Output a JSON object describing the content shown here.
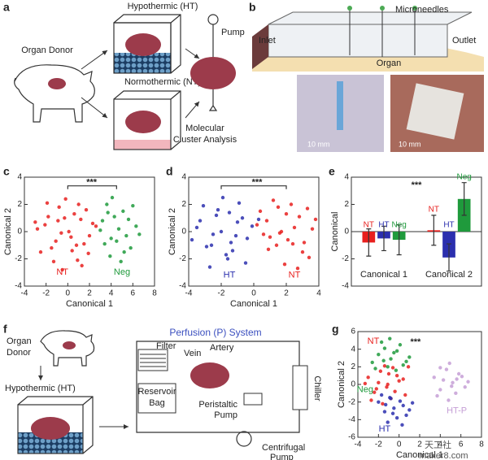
{
  "figure": {
    "panel_labels": [
      "a",
      "b",
      "c",
      "d",
      "e",
      "f",
      "g"
    ]
  },
  "panel_a": {
    "donor": "Organ Donor",
    "ht": "Hypothermic (HT)",
    "nt": "Normothermic (NT)",
    "pump": "Pump",
    "analysis": [
      "Molecular",
      "Cluster Analysis"
    ]
  },
  "panel_b": {
    "microneedles": "Microneedles",
    "inlet": "Inlet",
    "outlet": "Outlet",
    "organ": "Organ",
    "scale_bars": [
      "10 mm",
      "10 mm"
    ]
  },
  "panel_f": {
    "donor": [
      "Organ",
      "Donor"
    ],
    "ht": "Hypothermic (HT)",
    "system": "Perfusion (P) System",
    "filter": "Filter",
    "vein": "Vein",
    "artery": "Artery",
    "reservoir": [
      "Reservoir",
      "Bag"
    ],
    "peristaltic": [
      "Peristaltic",
      "Pump"
    ],
    "chiller": "Chiller",
    "centrifugal": [
      "Centrifugal",
      "Pump"
    ]
  },
  "watermark": [
    "天工社",
    "maker8.com"
  ],
  "chart_data": [
    {
      "type": "scatter",
      "xlabel": "Canonical 1",
      "ylabel": "Canonical 2",
      "annotation": "***",
      "xlim": [
        -4,
        8
      ],
      "xticks": [
        -4,
        -2,
        0,
        2,
        4,
        6,
        8
      ],
      "ylim": [
        -4,
        4
      ],
      "yticks": [
        -4,
        -2,
        0,
        2,
        4
      ],
      "series": [
        {
          "name": "NT",
          "color": "#e8201e",
          "x": [
            -2.1,
            -1.5,
            -0.8,
            0.3,
            1.2,
            1.9,
            -2.8,
            -0.2,
            0.9,
            -1.1,
            2.3,
            -0.5,
            0.6,
            -1.8,
            1.5,
            -2.5,
            0.1,
            1.0,
            -0.9,
            2.0,
            -1.3,
            0.4,
            -3.0,
            1.7,
            -0.6,
            0.8,
            -1.9,
            2.6,
            -0.3,
            1.3
          ],
          "y": [
            0.5,
            -1.2,
            1.8,
            -0.4,
            0.9,
            -1.6,
            0.2,
            2.4,
            -2.1,
            -0.7,
            0.6,
            -2.8,
            1.3,
            1.1,
            -0.9,
            -1.5,
            0.0,
            2.0,
            0.8,
            -0.3,
            -2.2,
            -1.4,
            0.7,
            1.6,
            -0.1,
            -1.0,
            2.1,
            0.4,
            1.0,
            -2.5
          ]
        },
        {
          "name": "Neg",
          "color": "#1f9a3c",
          "x": [
            3.2,
            4.0,
            5.1,
            5.8,
            3.6,
            4.7,
            6.3,
            3.9,
            5.4,
            4.3,
            6.0,
            3.4,
            4.9,
            5.6,
            4.1,
            3.0,
            5.2,
            4.5,
            6.6,
            3.7
          ],
          "y": [
            0.8,
            -0.5,
            1.5,
            -1.2,
            2.0,
            0.2,
            0.4,
            -1.8,
            -0.3,
            1.1,
            1.9,
            -0.9,
            -2.2,
            0.9,
            2.5,
            0.1,
            -1.5,
            -0.7,
            -0.2,
            1.4
          ]
        }
      ]
    },
    {
      "type": "scatter",
      "xlabel": "Canonical 1",
      "ylabel": "Canonical 2",
      "annotation": "***",
      "xlim": [
        -4,
        4
      ],
      "xticks": [
        -4,
        -2,
        0,
        2,
        4
      ],
      "ylim": [
        -4,
        4
      ],
      "yticks": [
        -4,
        -2,
        0,
        2,
        4
      ],
      "series": [
        {
          "name": "HT",
          "color": "#2b2fae",
          "x": [
            -3.5,
            -2.9,
            -2.2,
            -1.6,
            -1.0,
            -0.4,
            -3.1,
            -2.5,
            -1.9,
            -1.3,
            -0.7,
            -0.1,
            -2.7,
            -2.0,
            -1.4,
            -0.9,
            -3.8,
            -2.3,
            -1.7,
            -1.1,
            -0.5,
            0.3,
            -2.6,
            -1.5,
            -3.3
          ],
          "y": [
            0.3,
            -1.1,
            1.6,
            -2.0,
            0.7,
            -0.5,
            1.9,
            -0.2,
            2.5,
            -1.4,
            1.0,
            0.4,
            -2.6,
            0.0,
            -0.8,
            2.1,
            -0.6,
            1.2,
            -1.7,
            -0.3,
            -2.3,
            0.9,
            -1.0,
            1.4,
            0.8
          ]
        },
        {
          "name": "NT",
          "color": "#e8201e",
          "x": [
            0.2,
            0.9,
            1.5,
            2.1,
            2.8,
            3.4,
            0.6,
            1.2,
            1.9,
            2.5,
            3.1,
            3.8,
            0.4,
            1.0,
            1.7,
            2.3,
            3.0,
            3.6,
            1.4,
            2.0,
            2.7,
            0.8,
            3.3,
            1.6,
            2.4
          ],
          "y": [
            0.5,
            -1.3,
            1.8,
            -0.6,
            1.1,
            -1.9,
            -0.2,
            2.3,
            -2.4,
            0.3,
            -0.8,
            0.9,
            1.5,
            -0.4,
            0.0,
            2.0,
            -1.5,
            0.2,
            -1.0,
            1.3,
            -2.7,
            0.8,
            1.7,
            -0.1,
            -0.9
          ]
        }
      ]
    },
    {
      "type": "bar",
      "ylabel": "Canonical",
      "annotation": "***",
      "categories": [
        "Canonical 1",
        "Canonical 2"
      ],
      "ylim": [
        -4,
        4
      ],
      "yticks": [
        -4,
        -2,
        0,
        2,
        4
      ],
      "series": [
        {
          "name": "NT",
          "color": "#e8201e",
          "values": [
            -0.8,
            0.1
          ],
          "errors": [
            1.0,
            1.1
          ]
        },
        {
          "name": "HT",
          "color": "#2b2fae",
          "values": [
            -0.5,
            -1.9
          ],
          "errors": [
            0.9,
            1.0
          ]
        },
        {
          "name": "Neg",
          "color": "#1f9a3c",
          "values": [
            -0.6,
            2.4
          ],
          "errors": [
            1.1,
            1.2
          ]
        }
      ]
    },
    {
      "type": "scatter",
      "xlabel": "Canonical 1",
      "ylabel": "Canonical 2",
      "annotation": "***",
      "xlim": [
        -4,
        8
      ],
      "xticks": [
        -4,
        -2,
        0,
        2,
        4,
        6,
        8
      ],
      "ylim": [
        -6,
        6
      ],
      "yticks": [
        -6,
        -4,
        -2,
        0,
        2,
        4,
        6
      ],
      "series": [
        {
          "name": "NT",
          "color": "#e8201e",
          "x": [
            -3.0,
            -2.4,
            -1.8,
            -1.2,
            -0.6,
            0.0,
            0.6,
            -2.7,
            -2.0,
            -1.4,
            -0.8,
            -0.2,
            0.4,
            -2.2,
            -1.6,
            -1.0,
            -0.4,
            0.9,
            -3.3,
            -1.1
          ],
          "y": [
            0.8,
            -0.9,
            1.5,
            -0.3,
            1.9,
            0.4,
            -1.2,
            -1.8,
            0.2,
            2.1,
            -1.6,
            1.0,
            0.6,
            -0.5,
            -2.2,
            1.2,
            -0.8,
            2.0,
            0.1,
            0.0
          ]
        },
        {
          "name": "Neg",
          "color": "#1f9a3c",
          "x": [
            -2.6,
            -2.0,
            -1.4,
            -0.8,
            -0.2,
            0.4,
            1.0,
            -1.7,
            -1.1,
            -0.5,
            0.1,
            -2.3,
            -1.5,
            0.7,
            -0.9,
            -0.3
          ],
          "y": [
            2.5,
            3.4,
            4.1,
            2.9,
            3.8,
            2.2,
            3.1,
            4.8,
            2.0,
            3.6,
            4.5,
            1.8,
            2.7,
            2.6,
            5.2,
            1.6
          ]
        },
        {
          "name": "HT",
          "color": "#2b2fae",
          "x": [
            -2.0,
            -1.4,
            -0.8,
            -0.2,
            0.4,
            1.0,
            -1.7,
            -1.1,
            -0.5,
            0.1,
            0.7,
            -1.3,
            -0.6,
            0.3,
            -0.9,
            1.3
          ],
          "y": [
            -2.0,
            -3.1,
            -1.6,
            -3.8,
            -2.4,
            -2.9,
            -1.2,
            -4.3,
            -2.7,
            -1.9,
            -3.5,
            -2.3,
            -3.3,
            -4.6,
            -1.5,
            -2.1
          ]
        },
        {
          "name": "HT-P",
          "color": "#c59fd6",
          "x": [
            3.4,
            4.0,
            4.6,
            5.2,
            5.8,
            6.4,
            3.7,
            4.3,
            4.9,
            5.5,
            6.1,
            4.0,
            4.8,
            5.6,
            5.1,
            6.7
          ],
          "y": [
            0.8,
            -0.6,
            1.7,
            0.2,
            1.2,
            -0.3,
            -1.3,
            0.5,
            2.4,
            -1.0,
            0.9,
            1.9,
            -1.8,
            0.6,
            -0.2,
            0.3
          ]
        }
      ]
    }
  ]
}
